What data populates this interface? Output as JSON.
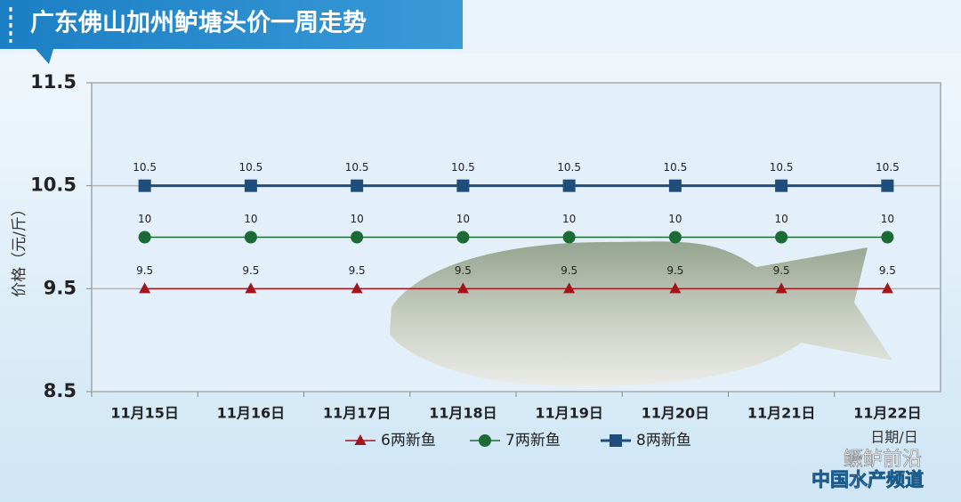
{
  "chart_data": {
    "type": "line",
    "title": "广东佛山加州鲈塘头价一周走势",
    "ylabel": "价格（元/斤）",
    "xlabel": "日期/日",
    "annotations": [
      "鳜鲈前沿",
      "中国水产频道"
    ],
    "categories": [
      "11月15日",
      "11月16日",
      "11月17日",
      "11月18日",
      "11月19日",
      "11月20日",
      "11月21日",
      "11月22日"
    ],
    "series": [
      {
        "name": "6两新鱼",
        "color": "#a3151d",
        "marker": "triangle",
        "values": [
          9.5,
          9.5,
          9.5,
          9.5,
          9.5,
          9.5,
          9.5,
          9.5
        ]
      },
      {
        "name": "7两新鱼",
        "color": "#1c6a36",
        "marker": "circle",
        "values": [
          10,
          10,
          10,
          10,
          10,
          10,
          10,
          10
        ]
      },
      {
        "name": "8两新鱼",
        "color": "#1f4e7d",
        "marker": "square",
        "values": [
          10.5,
          10.5,
          10.5,
          10.5,
          10.5,
          10.5,
          10.5,
          10.5
        ]
      }
    ],
    "ylim": [
      8.5,
      11.5
    ],
    "yticks": [
      8.5,
      9.5,
      10.5,
      11.5
    ],
    "grid": true,
    "legend": "bottom"
  }
}
